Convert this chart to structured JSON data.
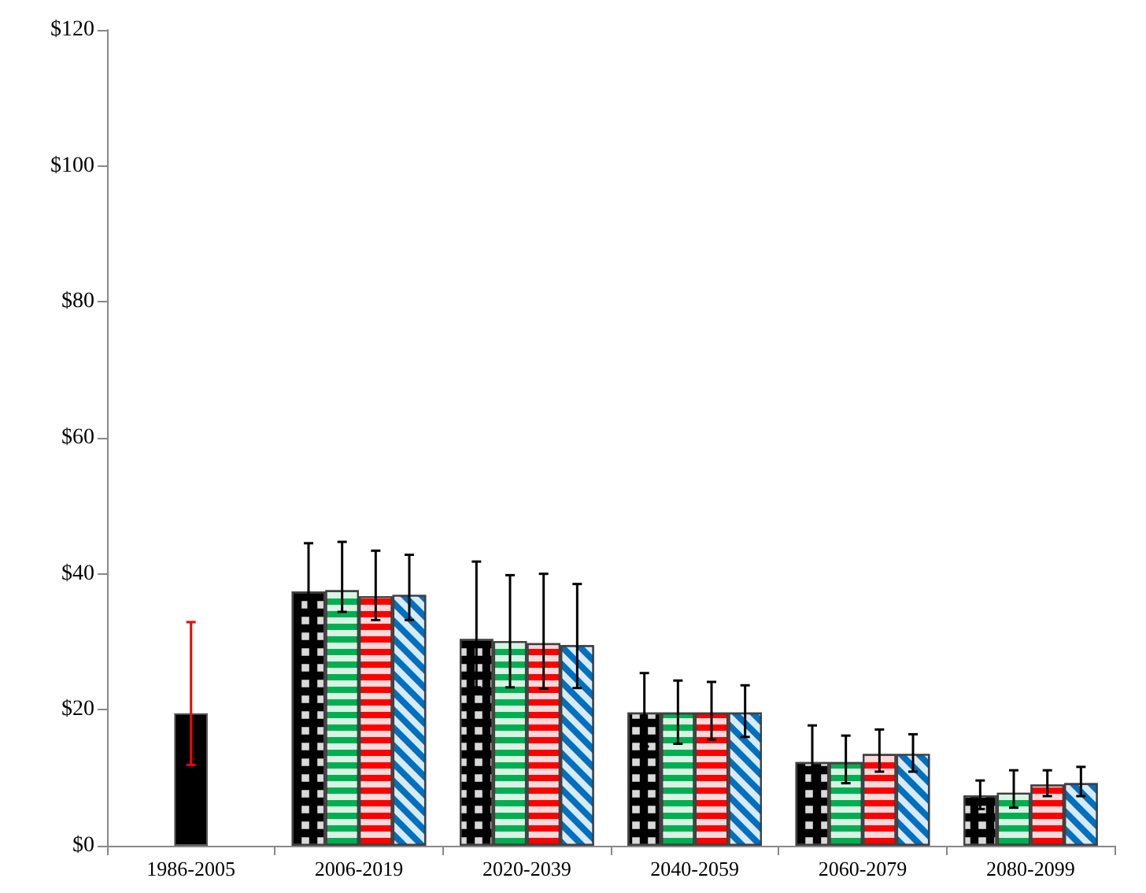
{
  "chart_data": {
    "type": "bar",
    "categories": [
      "1986-2005",
      "2006-2019",
      "2020-2039",
      "2040-2059",
      "2060-2079",
      "2080-2099"
    ],
    "series": [
      {
        "color": "#000000",
        "values": [
          19.5,
          null,
          null,
          null,
          null,
          null
        ],
        "errors": [
          [
            11.9,
            32.9
          ],
          null,
          null,
          null,
          null,
          null
        ]
      },
      {
        "color": "#000000",
        "values": [
          null,
          37.4,
          30.4,
          19.6,
          12.3,
          7.4
        ],
        "errors": [
          null,
          [
            34.4,
            44.5
          ],
          [
            23.3,
            41.8
          ],
          [
            14.6,
            25.4
          ],
          [
            9.0,
            17.7
          ],
          [
            5.4,
            9.6
          ]
        ]
      },
      {
        "color": "#00b050",
        "values": [
          null,
          37.6,
          30.1,
          19.6,
          12.3,
          7.8
        ],
        "errors": [
          null,
          [
            34.4,
            44.7
          ],
          [
            23.3,
            39.8
          ],
          [
            15.0,
            24.3
          ],
          [
            9.2,
            16.2
          ],
          [
            5.6,
            11.1
          ]
        ]
      },
      {
        "color": "#ff0000",
        "values": [
          null,
          36.7,
          29.8,
          19.6,
          13.5,
          9.0
        ],
        "errors": [
          null,
          [
            33.2,
            43.4
          ],
          [
            23.1,
            40.0
          ],
          [
            15.6,
            24.1
          ],
          [
            10.9,
            17.1
          ],
          [
            7.3,
            11.1
          ]
        ]
      },
      {
        "color": "#0070c0",
        "values": [
          null,
          36.9,
          29.5,
          19.6,
          13.5,
          9.2
        ],
        "errors": [
          null,
          [
            33.2,
            42.8
          ],
          [
            23.2,
            38.5
          ],
          [
            16.0,
            23.6
          ],
          [
            10.9,
            16.4
          ],
          [
            7.3,
            11.6
          ]
        ]
      }
    ],
    "ylim": [
      0,
      120
    ],
    "yticks": [
      {
        "value": 0,
        "label": "$0"
      },
      {
        "value": 20,
        "label": "$20"
      },
      {
        "value": 40,
        "label": "$40"
      },
      {
        "value": 60,
        "label": "$60"
      },
      {
        "value": 80,
        "label": "$80"
      },
      {
        "value": 100,
        "label": "$100"
      },
      {
        "value": 120,
        "label": "$120"
      }
    ],
    "grid": false
  }
}
